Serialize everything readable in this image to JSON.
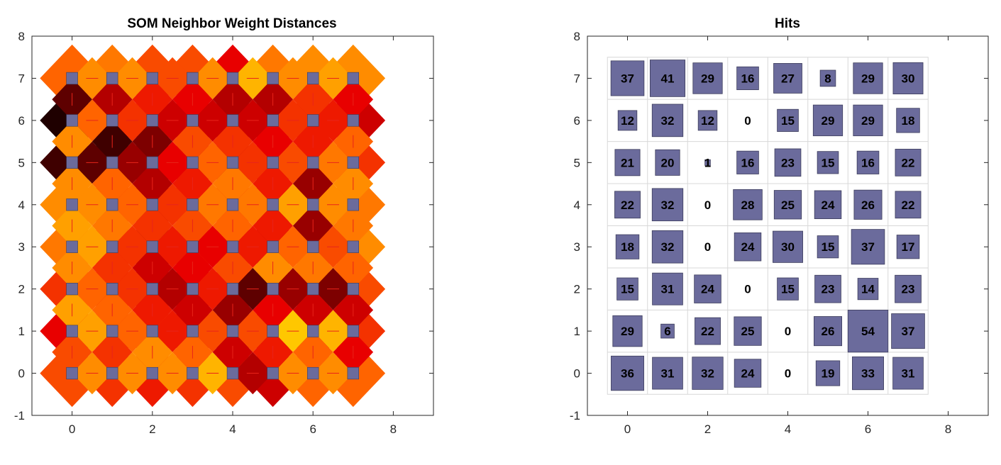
{
  "colors": {
    "neuron": "#6b6b9c",
    "hit_box": "#6b6b9c",
    "grid_line": "#d8d8d8",
    "connector": "#e8241a",
    "distance_scale": [
      "#000000",
      "#7d0000",
      "#e80000",
      "#ff6400",
      "#ffb400",
      "#ffff00"
    ]
  },
  "chart_data": [
    {
      "type": "heatmap",
      "title": "SOM Neighbor Weight Distances",
      "grid_size": [
        8,
        8
      ],
      "xlim": [
        -1,
        9
      ],
      "ylim": [
        -1,
        8
      ],
      "x_ticks": [
        0,
        2,
        4,
        6,
        8
      ],
      "y_ticks": [
        -1,
        0,
        1,
        2,
        3,
        4,
        5,
        6,
        7,
        8
      ],
      "horizontal_link_intensity": [
        [
          0.7,
          0.7,
          0.7,
          0.8,
          0.3,
          0.7,
          0.7
        ],
        [
          0.75,
          0.6,
          0.45,
          0.55,
          0.55,
          0.85,
          0.8
        ],
        [
          0.6,
          0.5,
          0.3,
          0.45,
          0.15,
          0.25,
          0.2
        ],
        [
          0.75,
          0.5,
          0.45,
          0.4,
          0.45,
          0.6,
          0.55
        ],
        [
          0.7,
          0.6,
          0.5,
          0.65,
          0.65,
          0.75,
          0.7
        ],
        [
          0.15,
          0.25,
          0.4,
          0.6,
          0.5,
          0.55,
          0.65
        ],
        [
          0.6,
          0.5,
          0.35,
          0.35,
          0.35,
          0.5,
          0.45
        ],
        [
          0.7,
          0.7,
          0.55,
          0.7,
          0.8,
          0.7,
          0.75
        ]
      ],
      "vertical_link_intensity": [
        [
          0.55,
          0.5,
          0.7,
          0.6,
          0.35,
          0.45,
          0.6,
          0.4
        ],
        [
          0.75,
          0.6,
          0.45,
          0.35,
          0.25,
          0.4,
          0.35,
          0.35
        ],
        [
          0.7,
          0.5,
          0.35,
          0.4,
          0.55,
          0.7,
          0.65,
          0.6
        ],
        [
          0.75,
          0.65,
          0.5,
          0.55,
          0.6,
          0.45,
          0.25,
          0.65
        ],
        [
          0.7,
          0.6,
          0.3,
          0.45,
          0.65,
          0.45,
          0.25,
          0.7
        ],
        [
          0.7,
          0.1,
          0.2,
          0.55,
          0.5,
          0.4,
          0.45,
          0.6
        ],
        [
          0.15,
          0.3,
          0.45,
          0.4,
          0.3,
          0.3,
          0.5,
          0.4
        ],
        [
          0.65,
          0.7,
          0.6,
          0.6,
          0.5,
          0.75,
          0.7,
          0.65
        ]
      ],
      "node_intensity": [
        [
          0.55,
          0.5,
          0.45,
          0.5,
          0.55,
          0.35,
          0.6,
          0.6
        ],
        [
          0.4,
          0.5,
          0.55,
          0.35,
          0.25,
          0.35,
          0.35,
          0.5
        ],
        [
          0.5,
          0.4,
          0.3,
          0.4,
          0.4,
          0.65,
          0.5,
          0.55
        ],
        [
          0.65,
          0.45,
          0.2,
          0.55,
          0.5,
          0.3,
          0.65,
          0.7
        ],
        [
          0.7,
          0.5,
          0.3,
          0.65,
          0.45,
          0.3,
          0.5,
          0.65
        ],
        [
          0.1,
          0.1,
          0.3,
          0.35,
          0.3,
          0.4,
          0.45,
          0.5
        ],
        [
          0.05,
          0.4,
          0.55,
          0.4,
          0.3,
          0.4,
          0.45,
          0.35
        ],
        [
          0.6,
          0.65,
          0.55,
          0.55,
          0.4,
          0.65,
          0.7,
          0.7
        ]
      ]
    },
    {
      "type": "table",
      "title": "Hits",
      "grid_size": [
        8,
        8
      ],
      "xlim": [
        -1,
        9
      ],
      "ylim": [
        -1,
        8
      ],
      "x_ticks": [
        0,
        2,
        4,
        6,
        8
      ],
      "y_ticks": [
        -1,
        0,
        1,
        2,
        3,
        4,
        5,
        6,
        7,
        8
      ],
      "max_hits": 54,
      "hits": [
        [
          36,
          31,
          32,
          24,
          0,
          19,
          33,
          31
        ],
        [
          29,
          6,
          22,
          25,
          0,
          26,
          54,
          37
        ],
        [
          15,
          31,
          24,
          0,
          15,
          23,
          14,
          23
        ],
        [
          18,
          32,
          0,
          24,
          30,
          15,
          37,
          17
        ],
        [
          22,
          32,
          0,
          28,
          25,
          24,
          26,
          22
        ],
        [
          21,
          20,
          1,
          16,
          23,
          15,
          16,
          22
        ],
        [
          12,
          32,
          12,
          0,
          15,
          29,
          29,
          18
        ],
        [
          37,
          41,
          29,
          16,
          27,
          8,
          29,
          30
        ]
      ]
    }
  ]
}
